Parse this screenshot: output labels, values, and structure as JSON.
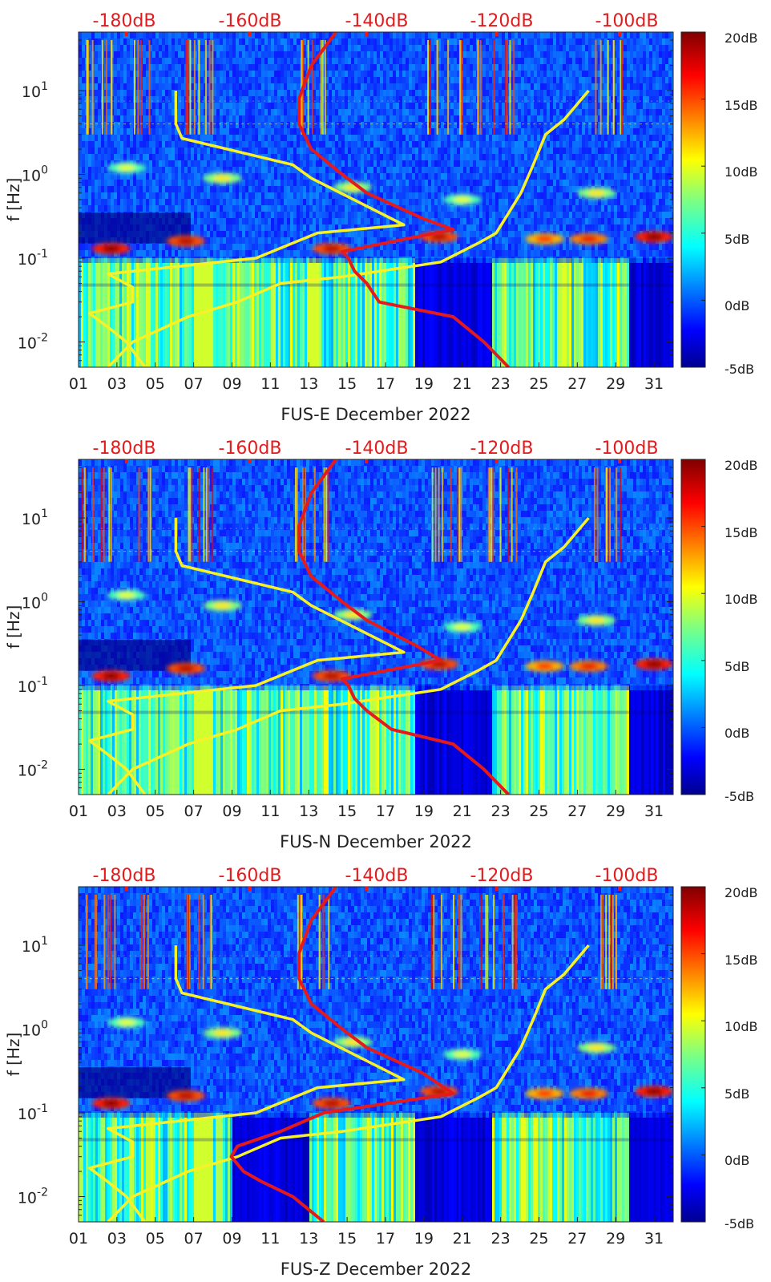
{
  "figure": {
    "colormap": "jet",
    "colors": {
      "reference_curves": "#f7f127",
      "noise_curve": "#e41a1c",
      "top_labels": "#e41a1c"
    }
  },
  "chart_data": [
    {
      "type": "heatmap",
      "title": "",
      "xlabel": "FUS-E December 2022",
      "ylabel": "f [Hz]",
      "x_tick_labels": [
        "01",
        "03",
        "05",
        "07",
        "09",
        "11",
        "13",
        "15",
        "17",
        "19",
        "21",
        "23",
        "25",
        "27",
        "29",
        "31"
      ],
      "x_ticks": [
        1,
        3,
        5,
        7,
        9,
        11,
        13,
        15,
        17,
        19,
        21,
        23,
        25,
        27,
        29,
        31
      ],
      "xlim": [
        1,
        32
      ],
      "y_scale": "log",
      "ylim": [
        0.005,
        50
      ],
      "y_ticks": [
        0.01,
        0.1,
        1,
        10
      ],
      "y_tick_labels": [
        [
          "10",
          "-2"
        ],
        [
          "10",
          "-1"
        ],
        [
          "10",
          "0"
        ],
        [
          "10",
          "1"
        ]
      ],
      "top_axis_labels": [
        "-180dB",
        "-160dB",
        "-140dB",
        "-120dB",
        "-100dB"
      ],
      "top_axis_positions": [
        3.5,
        9.9,
        16.0,
        22.8,
        29.2
      ],
      "top_axis_scale_db": [
        -180,
        -100
      ],
      "colorbar": {
        "labels": [
          "20dB",
          "15dB",
          "10dB",
          "5dB",
          "0dB",
          "-5dB"
        ],
        "range": [
          -5,
          20
        ]
      },
      "series": [
        {
          "role": "high-noise-reference",
          "x_db": [
            -183,
            -179,
            -170,
            -162,
            -155,
            -145,
            -129,
            -123,
            -120,
            -116,
            -114,
            -112,
            -109,
            -105
          ],
          "frequency_hz": [
            0.005,
            0.01,
            0.02,
            0.03,
            0.05,
            0.06,
            0.09,
            0.15,
            0.2,
            0.6,
            1.3,
            3,
            4.5,
            10
          ]
        },
        {
          "role": "low-noise-reference",
          "x_db": [
            -177,
            -180,
            -183,
            -186,
            -179,
            -179,
            -183,
            -159,
            -149,
            -135,
            -150,
            -153,
            -171,
            -172,
            -172
          ],
          "frequency_hz": [
            0.005,
            0.01,
            0.015,
            0.022,
            0.03,
            0.045,
            0.065,
            0.1,
            0.2,
            0.25,
            0.9,
            1.3,
            2.7,
            4,
            10
          ]
        },
        {
          "role": "noise-median",
          "x_db": [
            -118,
            -122,
            -127,
            -139,
            -141,
            -143,
            -144,
            -145,
            -127,
            -132,
            -141,
            -145,
            -150,
            -152,
            -152,
            -150,
            -146
          ],
          "frequency_hz": [
            0.005,
            0.01,
            0.02,
            0.03,
            0.05,
            0.07,
            0.1,
            0.12,
            0.22,
            0.3,
            0.6,
            1,
            2,
            4,
            8,
            20,
            50
          ]
        }
      ]
    },
    {
      "type": "heatmap",
      "title": "",
      "xlabel": "FUS-N December 2022",
      "ylabel": "f [Hz]",
      "x_tick_labels": [
        "01",
        "03",
        "05",
        "07",
        "09",
        "11",
        "13",
        "15",
        "17",
        "19",
        "21",
        "23",
        "25",
        "27",
        "29",
        "31"
      ],
      "x_ticks": [
        1,
        3,
        5,
        7,
        9,
        11,
        13,
        15,
        17,
        19,
        21,
        23,
        25,
        27,
        29,
        31
      ],
      "xlim": [
        1,
        32
      ],
      "y_scale": "log",
      "ylim": [
        0.005,
        50
      ],
      "y_ticks": [
        0.01,
        0.1,
        1,
        10
      ],
      "y_tick_labels": [
        [
          "10",
          "-2"
        ],
        [
          "10",
          "-1"
        ],
        [
          "10",
          "0"
        ],
        [
          "10",
          "1"
        ]
      ],
      "top_axis_labels": [
        "-180dB",
        "-160dB",
        "-140dB",
        "-120dB",
        "-100dB"
      ],
      "top_axis_positions": [
        3.5,
        9.9,
        16.0,
        22.8,
        29.2
      ],
      "top_axis_scale_db": [
        -180,
        -100
      ],
      "colorbar": {
        "labels": [
          "20dB",
          "15dB",
          "10dB",
          "5dB",
          "0dB",
          "-5dB"
        ],
        "range": [
          -5,
          20
        ]
      },
      "series": [
        {
          "role": "high-noise-reference",
          "x_db": [
            -183,
            -179,
            -170,
            -162,
            -155,
            -145,
            -129,
            -123,
            -120,
            -116,
            -114,
            -112,
            -109,
            -105
          ],
          "frequency_hz": [
            0.005,
            0.01,
            0.02,
            0.03,
            0.05,
            0.06,
            0.09,
            0.15,
            0.2,
            0.6,
            1.3,
            3,
            4.5,
            10
          ]
        },
        {
          "role": "low-noise-reference",
          "x_db": [
            -177,
            -180,
            -183,
            -186,
            -179,
            -179,
            -183,
            -159,
            -149,
            -135,
            -150,
            -153,
            -171,
            -172,
            -172
          ],
          "frequency_hz": [
            0.005,
            0.01,
            0.015,
            0.022,
            0.03,
            0.045,
            0.065,
            0.1,
            0.2,
            0.25,
            0.9,
            1.3,
            2.7,
            4,
            10
          ]
        },
        {
          "role": "noise-median",
          "x_db": [
            -118,
            -122,
            -127,
            -137,
            -141,
            -143,
            -144,
            -145,
            -129,
            -133,
            -141,
            -145,
            -150,
            -152,
            -152,
            -150,
            -146
          ],
          "frequency_hz": [
            0.005,
            0.01,
            0.02,
            0.03,
            0.05,
            0.07,
            0.1,
            0.12,
            0.2,
            0.3,
            0.6,
            1,
            2,
            4,
            8,
            20,
            50
          ]
        }
      ]
    },
    {
      "type": "heatmap",
      "title": "",
      "xlabel": "FUS-Z December 2022",
      "ylabel": "f [Hz]",
      "x_tick_labels": [
        "01",
        "03",
        "05",
        "07",
        "09",
        "11",
        "13",
        "15",
        "17",
        "19",
        "21",
        "23",
        "25",
        "27",
        "29",
        "31"
      ],
      "x_ticks": [
        1,
        3,
        5,
        7,
        9,
        11,
        13,
        15,
        17,
        19,
        21,
        23,
        25,
        27,
        29,
        31
      ],
      "xlim": [
        1,
        32
      ],
      "y_scale": "log",
      "ylim": [
        0.005,
        50
      ],
      "y_ticks": [
        0.01,
        0.1,
        1,
        10
      ],
      "y_tick_labels": [
        [
          "10",
          "-2"
        ],
        [
          "10",
          "-1"
        ],
        [
          "10",
          "0"
        ],
        [
          "10",
          "1"
        ]
      ],
      "top_axis_labels": [
        "-180dB",
        "-160dB",
        "-140dB",
        "-120dB",
        "-100dB"
      ],
      "top_axis_positions": [
        3.5,
        9.9,
        16.0,
        22.8,
        29.2
      ],
      "top_axis_scale_db": [
        -180,
        -100
      ],
      "colorbar": {
        "labels": [
          "20dB",
          "15dB",
          "10dB",
          "5dB",
          "0dB",
          "-5dB"
        ],
        "range": [
          -5,
          20
        ]
      },
      "series": [
        {
          "role": "high-noise-reference",
          "x_db": [
            -183,
            -179,
            -170,
            -162,
            -155,
            -145,
            -129,
            -123,
            -120,
            -116,
            -114,
            -112,
            -109,
            -105
          ],
          "frequency_hz": [
            0.005,
            0.01,
            0.02,
            0.03,
            0.05,
            0.06,
            0.09,
            0.15,
            0.2,
            0.6,
            1.3,
            3,
            4.5,
            10
          ]
        },
        {
          "role": "low-noise-reference",
          "x_db": [
            -177,
            -180,
            -183,
            -186,
            -179,
            -179,
            -183,
            -159,
            -149,
            -135,
            -150,
            -153,
            -171,
            -172,
            -172
          ],
          "frequency_hz": [
            0.005,
            0.01,
            0.015,
            0.022,
            0.03,
            0.045,
            0.065,
            0.1,
            0.2,
            0.25,
            0.9,
            1.3,
            2.7,
            4,
            10
          ]
        },
        {
          "role": "noise-median",
          "x_db": [
            -148,
            -153,
            -158,
            -161,
            -163,
            -162,
            -155,
            -148,
            -127,
            -132,
            -141,
            -145,
            -150,
            -152,
            -152,
            -150,
            -146
          ],
          "frequency_hz": [
            0.005,
            0.01,
            0.015,
            0.02,
            0.03,
            0.04,
            0.06,
            0.1,
            0.17,
            0.3,
            0.6,
            1,
            2,
            4,
            8,
            20,
            50
          ]
        }
      ]
    }
  ]
}
